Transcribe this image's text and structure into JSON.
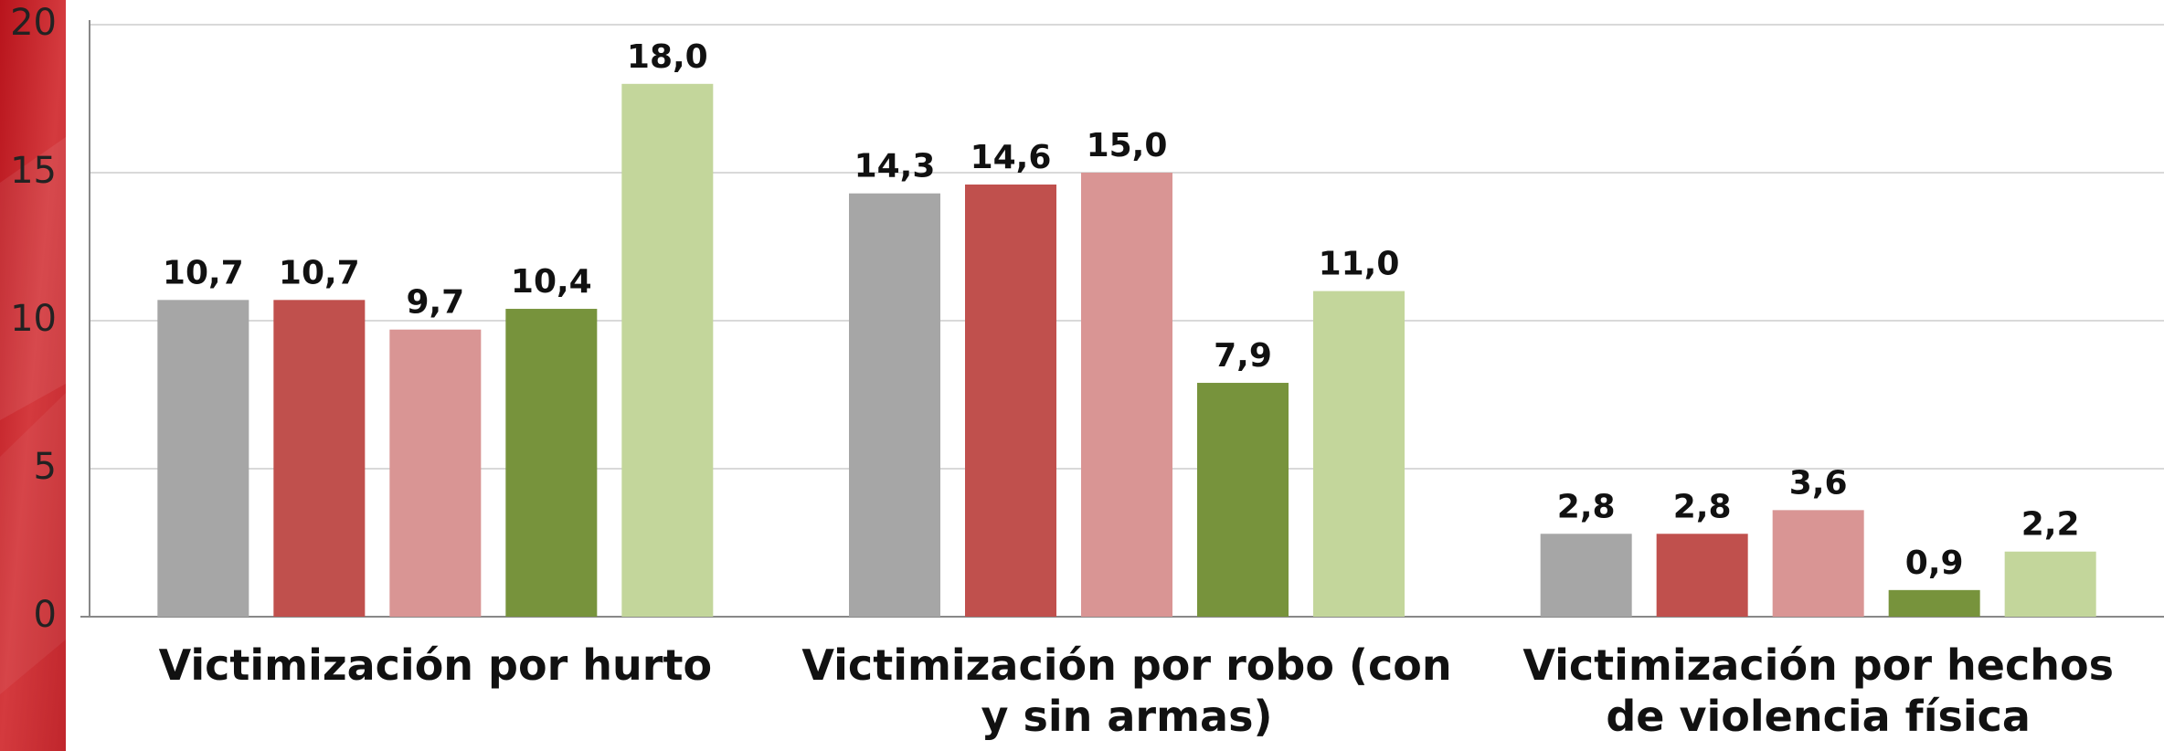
{
  "chart_data": {
    "type": "bar",
    "categories": [
      "Victimización por hurto",
      "Victimización por robo (con y sin armas)",
      "Victimización por hechos de violencia física"
    ],
    "series": [
      {
        "color": "#a6a6a6",
        "values": [
          10.7,
          14.3,
          2.8
        ],
        "value_labels": [
          "10,7",
          "14,3",
          "2,8"
        ]
      },
      {
        "color": "#c0504d",
        "values": [
          10.7,
          14.6,
          2.8
        ],
        "value_labels": [
          "10,7",
          "14,6",
          "2,8"
        ]
      },
      {
        "color": "#d99594",
        "values": [
          9.7,
          15.0,
          3.6
        ],
        "value_labels": [
          "9,7",
          "15,0",
          "3,6"
        ]
      },
      {
        "color": "#77933c",
        "values": [
          10.4,
          7.9,
          0.9
        ],
        "value_labels": [
          "10,4",
          "7,9",
          "0,9"
        ]
      },
      {
        "color": "#c3d69b",
        "values": [
          18.0,
          11.0,
          2.2
        ],
        "value_labels": [
          "18,0",
          "11,0",
          "2,2"
        ]
      }
    ],
    "ylim": [
      0,
      20
    ],
    "yticks": [
      0,
      5,
      10,
      15,
      20
    ],
    "grid": true
  }
}
